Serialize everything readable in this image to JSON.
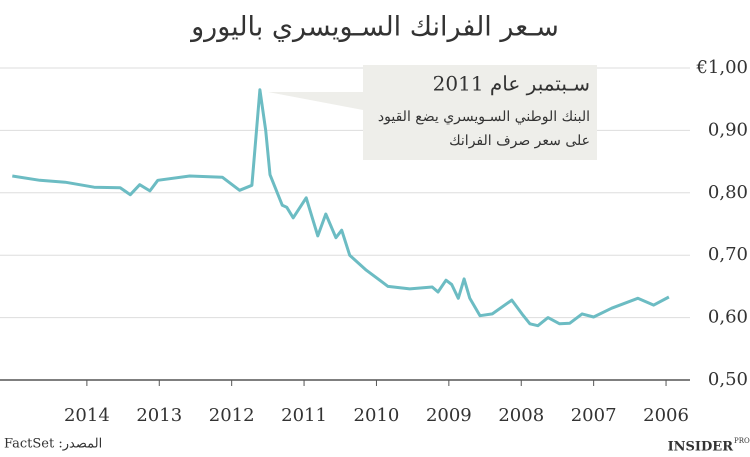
{
  "chart_data": {
    "type": "line",
    "title": "سـعر الفرانك السـويسري باليورو",
    "source": "المصدر: FactSet",
    "logo": {
      "main": "INSIDER",
      "sub": "PRO"
    },
    "annotation": {
      "title": "سـبتمبر عام 2011",
      "lines": [
        "البنك الوطني السـويسري يضع القيود",
        "على سعر صرف الفرانك"
      ]
    },
    "x": [
      2015.03,
      2014.65,
      2014.3,
      2013.9,
      2013.54,
      2013.4,
      2013.27,
      2013.13,
      2013.02,
      2012.58,
      2012.13,
      2011.89,
      2011.72,
      2011.61,
      2011.53,
      2011.47,
      2011.3,
      2011.24,
      2011.15,
      2010.97,
      2010.81,
      2010.7,
      2010.56,
      2010.48,
      2010.37,
      2010.14,
      2009.84,
      2009.54,
      2009.23,
      2009.15,
      2009.04,
      2008.96,
      2008.87,
      2008.79,
      2008.71,
      2008.57,
      2008.4,
      2008.13,
      2007.99,
      2007.88,
      2007.77,
      2007.63,
      2007.47,
      2007.33,
      2007.16,
      2007.0,
      2006.75,
      2006.39,
      2006.17,
      2005.96
    ],
    "series": [
      {
        "color": "#6cbcc3",
        "values": [
          0.827,
          0.82,
          0.817,
          0.809,
          0.808,
          0.797,
          0.813,
          0.803,
          0.82,
          0.827,
          0.825,
          0.804,
          0.812,
          0.965,
          0.9,
          0.829,
          0.78,
          0.777,
          0.76,
          0.792,
          0.731,
          0.766,
          0.728,
          0.74,
          0.7,
          0.676,
          0.65,
          0.646,
          0.649,
          0.641,
          0.66,
          0.653,
          0.631,
          0.662,
          0.631,
          0.603,
          0.606,
          0.628,
          0.606,
          0.59,
          0.587,
          0.6,
          0.59,
          0.591,
          0.606,
          0.601,
          0.615,
          0.631,
          0.62,
          0.633
        ]
      }
    ],
    "xlim": [
      2015.2,
      2005.6
    ],
    "xticks": [
      2014,
      2013,
      2012,
      2011,
      2010,
      2009,
      2008,
      2007,
      2006
    ],
    "ylim": [
      0.5,
      1.0
    ],
    "yticks": [
      {
        "value": 0.5,
        "label": "0,50"
      },
      {
        "value": 0.6,
        "label": "0,60"
      },
      {
        "value": 0.7,
        "label": "0,70"
      },
      {
        "value": 0.8,
        "label": "0,80"
      },
      {
        "value": 0.9,
        "label": "0,90"
      },
      {
        "value": 1.0,
        "label": "€1,00"
      }
    ],
    "grid": true
  }
}
